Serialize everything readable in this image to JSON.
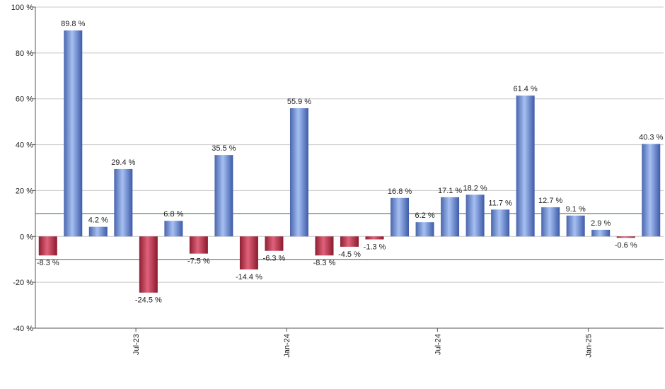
{
  "chart_data": {
    "type": "bar",
    "values": [
      -8.3,
      89.8,
      4.2,
      29.4,
      -24.5,
      6.8,
      -7.5,
      35.5,
      -14.4,
      -6.3,
      55.9,
      -8.3,
      -4.5,
      -1.3,
      16.8,
      6.2,
      17.1,
      18.2,
      11.7,
      61.4,
      12.7,
      9.1,
      2.9,
      -0.6,
      40.3
    ],
    "value_labels": [
      "-8.3 %",
      "89.8 %",
      "4.2 %",
      "29.4 %",
      "-24.5 %",
      "6.8 %",
      "-7.5 %",
      "35.5 %",
      "-14.4 %",
      "-6.3 %",
      "55.9 %",
      "-8.3 %",
      "-4.5 %",
      "-1.3 %",
      "16.8 %",
      "6.2 %",
      "17.1 %",
      "18.2 %",
      "11.7 %",
      "61.4 %",
      "12.7 %",
      "9.1 %",
      "2.9 %",
      "-0.6 %",
      "40.3 %"
    ],
    "x_ticks": [
      {
        "label": "Jul-23",
        "after_bar_index": 3
      },
      {
        "label": "Jan-24",
        "after_bar_index": 9
      },
      {
        "label": "Jul-24",
        "after_bar_index": 15
      },
      {
        "label": "Jan-25",
        "after_bar_index": 21
      }
    ],
    "y_ticks": [
      100,
      80,
      60,
      40,
      20,
      0,
      -20,
      -40
    ],
    "y_tick_labels": [
      "100 %",
      "80 %",
      "60 %",
      "40 %",
      "20 %",
      "0 %",
      "-20 %",
      "-40 %"
    ],
    "ylim": [
      -40,
      100
    ],
    "reference_lines": [
      10,
      -10
    ],
    "grid": true,
    "colors": {
      "positive": "#6f8fdc",
      "negative": "#c0304a",
      "reference": "#2e7d32",
      "grid": "#c8c8c8"
    }
  }
}
